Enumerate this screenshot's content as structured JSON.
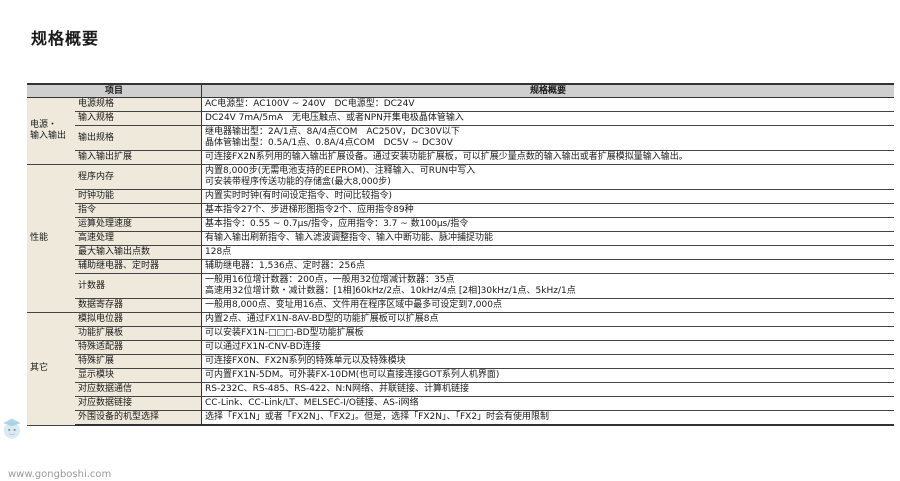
{
  "page_title": "规格概要",
  "table": {
    "headers": [
      "项目",
      "规格概要"
    ],
    "groups": [
      {
        "category": "电源・\n输入输出",
        "rows": [
          {
            "item": "电源规格",
            "value": "AC电源型：AC100V ~ 240V　DC电源型：DC24V"
          },
          {
            "item": "输入规格",
            "value": "DC24V 7mA/5mA　无电压触点、或者NPN开集电极晶体管输入"
          },
          {
            "item": "输出规格",
            "value": "继电器输出型：2A/1点、8A/4点COM　AC250V，DC30V以下\n晶体管输出型：0.5A/1点、0.8A/4点COM　DC5V ~ DC30V"
          },
          {
            "item": "输入输出扩展",
            "value": "可连接FX2N系列用的输入输出扩展设备。通过安装功能扩展板，可以扩展少量点数的输入输出或者扩展模拟量输入输出。"
          }
        ]
      },
      {
        "category": "性能",
        "rows": [
          {
            "item": "程序内存",
            "value": "内置8,000步(无需电池支持的EEPROM)、注释输入、可RUN中写入\n可安装带程序传送功能的存储盒(最大8,000步)"
          },
          {
            "item": "时钟功能",
            "value": "内置实时时钟(有时间设定指令、时间比较指令)"
          },
          {
            "item": "指令",
            "value": "基本指令27个、步进梯形图指令2个、应用指令89种"
          },
          {
            "item": "运算处理速度",
            "value": "基本指令：0.55 ~ 0.7μs/指令，应用指令：3.7 ~ 数100μs/指令"
          },
          {
            "item": "高速处理",
            "value": "有输入输出刷新指令、输入滤波调整指令、输入中断功能、脉冲捕捉功能"
          },
          {
            "item": "最大输入输出点数",
            "value": "128点"
          },
          {
            "item": "辅助继电器、定时器",
            "value": "辅助继电器：1,536点、定时器：256点"
          },
          {
            "item": "计数器",
            "value": "一般用16位增计数器：200点，一般用32位增减计数器：35点\n高速用32位增计数・减计数器：[1相]60kHz/2点、10kHz/4点 [2相]30kHz/1点、5kHz/1点"
          },
          {
            "item": "数据寄存器",
            "value": "一般用8,000点、变址用16点、文件用在程序区域中最多可设定到7,000点"
          }
        ]
      },
      {
        "category": "其它",
        "rows": [
          {
            "item": "模拟电位器",
            "value": "内置2点、通过FX1N-8AV-BD型的功能扩展板可以扩展8点"
          },
          {
            "item": "功能扩展板",
            "value": "可以安装FX1N-□□□-BD型功能扩展板"
          },
          {
            "item": "特殊适配器",
            "value": "可以通过FX1N-CNV-BD连接"
          },
          {
            "item": "特殊扩展",
            "value": "可连接FX0N、FX2N系列的特殊单元以及特殊模块"
          },
          {
            "item": "显示模块",
            "value": "可内置FX1N-5DM。可外装FX-10DM(也可以直接连接GOT系列人机界面)"
          },
          {
            "item": "对应数据通信",
            "value": "RS-232C、RS-485、RS-422、N:N网络、并联链接、计算机链接"
          },
          {
            "item": "对应数据链接",
            "value": "CC-Link、CC-Link/LT、MELSEC-I/O链接、AS-i网络"
          },
          {
            "item": "外围设备的机型选择",
            "value": "选择「FX1N」或者「FX2N」、「FX2」。但是，选择「FX2N」、「FX2」时会有使用限制"
          }
        ]
      }
    ]
  },
  "watermark": {
    "logo_text": "工博士",
    "sub_text": "智能工厂服务商",
    "url": "www.gongboshi.com"
  },
  "colors": {
    "header_bg": "#cfcfcf",
    "label_bg": "#efe9dc"
  }
}
